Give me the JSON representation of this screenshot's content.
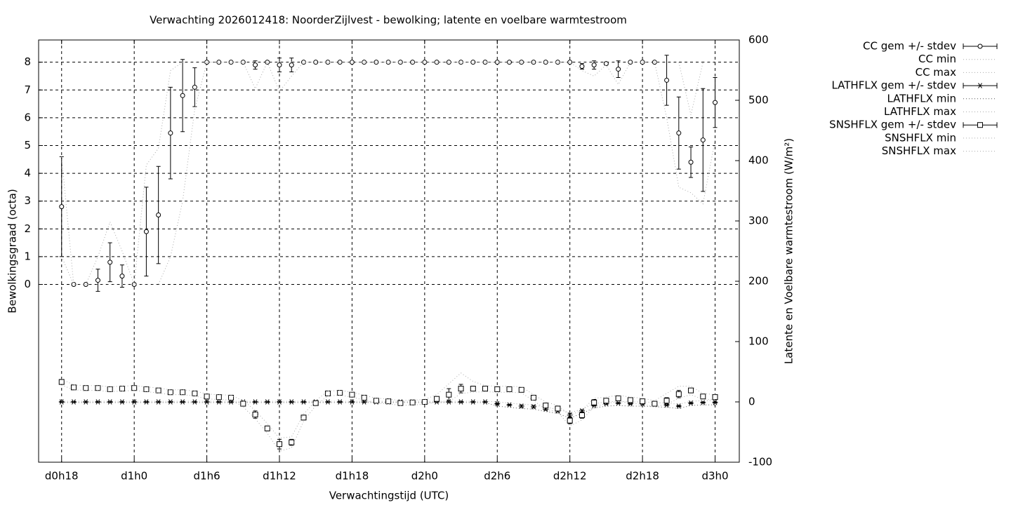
{
  "chart_data": {
    "type": "line",
    "title": "Verwachting 2026012418: NoorderZijlvest - bewolking; latente en voelbare warmtestroom",
    "xlabel": "Verwachtingstijd (UTC)",
    "ylabel": "Bewolkingsgraad (octa)",
    "y2label": "Latente en Voelbare warmtestroom (W/m²)",
    "grid": true,
    "xlim": [
      16.1,
      74
    ],
    "xticks": [
      {
        "value": 18,
        "label": "d0h18"
      },
      {
        "value": 24,
        "label": "d1h0"
      },
      {
        "value": 30,
        "label": "d1h6"
      },
      {
        "value": 36,
        "label": "d1h12"
      },
      {
        "value": 42,
        "label": "d1h18"
      },
      {
        "value": 48,
        "label": "d2h0"
      },
      {
        "value": 54,
        "label": "d2h6"
      },
      {
        "value": 60,
        "label": "d2h12"
      },
      {
        "value": 66,
        "label": "d2h18"
      },
      {
        "value": 72,
        "label": "d3h0"
      }
    ],
    "ylim": [
      -6.4,
      8.8
    ],
    "yticks": [
      0,
      1,
      2,
      3,
      4,
      5,
      6,
      7,
      8
    ],
    "y2lim": [
      -100,
      600
    ],
    "y2ticks": [
      -100,
      0,
      100,
      200,
      300,
      400,
      500,
      600
    ],
    "x": [
      18,
      19,
      20,
      21,
      22,
      23,
      24,
      25,
      26,
      27,
      28,
      29,
      30,
      31,
      32,
      33,
      34,
      35,
      36,
      37,
      38,
      39,
      40,
      41,
      42,
      43,
      44,
      45,
      46,
      47,
      48,
      49,
      50,
      51,
      52,
      53,
      54,
      55,
      56,
      57,
      58,
      59,
      60,
      61,
      62,
      63,
      64,
      65,
      66,
      67,
      68,
      69,
      70,
      71,
      72
    ],
    "series": [
      {
        "name": "CC gem +/- stdev",
        "color": "#000000",
        "marker": "circle",
        "values": [
          2.8,
          0,
          0,
          0.15,
          0.8,
          0.3,
          0,
          1.9,
          2.5,
          5.45,
          6.8,
          7.1,
          8,
          8,
          8,
          8,
          7.9,
          8,
          7.9,
          7.9,
          8,
          8,
          8,
          8,
          8,
          8,
          8,
          8,
          8,
          8,
          8,
          8,
          8,
          8,
          8,
          8,
          8,
          8,
          8,
          8,
          8,
          8,
          8,
          7.85,
          7.9,
          7.95,
          7.75,
          8,
          8,
          8,
          7.35,
          5.45,
          4.4,
          5.2,
          6.55
        ],
        "errors": [
          1.8,
          0,
          0,
          0.4,
          0.7,
          0.4,
          0,
          1.6,
          1.75,
          1.65,
          1.3,
          0.7,
          0,
          0,
          0,
          0,
          0.15,
          0,
          0.25,
          0.25,
          0,
          0,
          0,
          0,
          0,
          0,
          0,
          0,
          0,
          0,
          0,
          0,
          0,
          0,
          0,
          0,
          0,
          0,
          0,
          0,
          0,
          0,
          0,
          0.1,
          0.15,
          0.05,
          0.3,
          0,
          0,
          0,
          0.9,
          1.3,
          0.55,
          1.85,
          0.9
        ]
      },
      {
        "name": "CC min",
        "color": "#aaaaaa",
        "style": "dotted",
        "values": [
          1,
          0,
          0,
          0,
          0,
          0,
          0,
          0,
          0,
          1,
          3,
          6.3,
          8,
          8,
          8,
          8,
          7.05,
          8,
          6.95,
          7.5,
          8,
          8,
          8,
          8,
          8,
          8,
          8,
          8,
          8,
          8,
          8,
          8,
          8,
          8,
          8,
          8,
          8,
          8,
          8,
          8,
          8,
          8,
          8,
          7.7,
          7.5,
          7.9,
          7.2,
          8,
          8,
          8,
          6,
          3.5,
          3.3,
          2.9,
          5.2
        ]
      },
      {
        "name": "CC max",
        "color": "#aaaaaa",
        "style": "dotted",
        "values": [
          4.6,
          0,
          0,
          1,
          2.25,
          1.2,
          0,
          4.3,
          4.9,
          7.7,
          8,
          8,
          8,
          8,
          8,
          8,
          8,
          8,
          8,
          8,
          8,
          8,
          8,
          8,
          8,
          8,
          8,
          8,
          8,
          8,
          8,
          8,
          8,
          8,
          8,
          8,
          8,
          8,
          8,
          8,
          8,
          8,
          8,
          8,
          8,
          8,
          8,
          8,
          8,
          8,
          8,
          8,
          6.1,
          8,
          8
        ]
      },
      {
        "name": "LATHFLX gem +/- stdev",
        "color": "#000000",
        "marker": "star",
        "axis": "y2",
        "values": [
          0,
          0,
          0,
          0,
          0,
          0,
          0,
          0,
          0,
          0,
          0,
          0,
          0,
          0,
          0,
          0,
          0,
          0,
          0,
          0,
          0,
          0,
          0,
          0,
          0,
          0,
          0,
          0,
          0,
          0,
          0,
          0,
          0,
          0,
          0,
          0,
          -3,
          -5,
          -7,
          -8,
          -12,
          -15,
          -22,
          -15,
          -6,
          -3,
          -2,
          -3,
          -3,
          -4,
          -5,
          -7,
          -2,
          -1,
          -1
        ],
        "errors": [
          1,
          1,
          1,
          1,
          1,
          1,
          1,
          1,
          1,
          1,
          1,
          1,
          1,
          1,
          1,
          1,
          1,
          1,
          1,
          1,
          1,
          1,
          1,
          1,
          1,
          1,
          1,
          1,
          1,
          1,
          1,
          1,
          1,
          1,
          1,
          1,
          1,
          1,
          2,
          2,
          2,
          2,
          3,
          2,
          1,
          1,
          1,
          1,
          1,
          1,
          1,
          1,
          1,
          1,
          1
        ]
      },
      {
        "name": "LATHFLX min",
        "color": "#555555",
        "style": "dotted",
        "axis": "y2",
        "values": [
          -1,
          -1,
          -1,
          -1,
          -1,
          -1,
          -1,
          -1,
          -1,
          -1,
          -1,
          -1,
          -1,
          -1,
          -1,
          -1,
          -1,
          -1,
          -1,
          -1,
          -1,
          -1,
          -1,
          -1,
          -1,
          -1,
          -1,
          -1,
          -1,
          -1,
          -1,
          -1,
          -1,
          -1,
          -1,
          -1,
          -7,
          -9,
          -11,
          -12,
          -16,
          -19,
          -27,
          -19,
          -10,
          -7,
          -6,
          -7,
          -7,
          -8,
          -9,
          -11,
          -6,
          -5,
          -5
        ]
      },
      {
        "name": "LATHFLX max",
        "color": "#aaaaaa",
        "style": "dotted",
        "axis": "y2",
        "values": [
          1,
          1,
          1,
          1,
          1,
          1,
          1,
          1,
          1,
          1,
          1,
          1,
          1,
          1,
          1,
          1,
          1,
          1,
          1,
          1,
          1,
          1,
          1,
          1,
          1,
          1,
          1,
          1,
          1,
          1,
          1,
          1,
          1,
          1,
          1,
          1,
          0,
          -2,
          -4,
          -5,
          -9,
          -12,
          -18,
          -12,
          -3,
          0,
          1,
          0,
          0,
          -1,
          -2,
          -4,
          1,
          2,
          2
        ]
      },
      {
        "name": "SNSHFLX gem +/- stdev",
        "color": "#000000",
        "marker": "square",
        "axis": "y2",
        "values": [
          33,
          24,
          23,
          23,
          21,
          22,
          23,
          21,
          19,
          16,
          16,
          14,
          9,
          8,
          7,
          -3,
          -21,
          -44,
          -70,
          -67,
          -26,
          -2,
          14,
          15,
          12,
          7,
          2,
          1,
          -2,
          -1,
          0,
          5,
          12,
          22,
          22,
          22,
          21,
          21,
          20,
          7,
          -6,
          -11,
          -31,
          -22,
          -1,
          2,
          6,
          3,
          1,
          -3,
          2,
          13,
          19,
          9,
          8
        ],
        "errors": [
          4,
          2,
          2,
          2,
          2,
          2,
          2,
          2,
          2,
          2,
          2,
          2,
          3,
          3,
          2,
          3,
          6,
          4,
          8,
          5,
          4,
          2,
          2,
          2,
          2,
          2,
          2,
          2,
          2,
          2,
          2,
          3,
          10,
          7,
          4,
          2,
          2,
          2,
          2,
          2,
          2,
          3,
          5,
          5,
          5,
          2,
          2,
          2,
          2,
          2,
          5,
          6,
          2,
          2,
          2
        ]
      },
      {
        "name": "SNSHFLX min",
        "color": "#aaaaaa",
        "style": "dotted",
        "axis": "y2",
        "values": [
          28,
          20,
          19,
          19,
          17,
          18,
          19,
          17,
          15,
          12,
          12,
          10,
          5,
          4,
          3,
          -8,
          -28,
          -52,
          -82,
          -76,
          -32,
          -6,
          10,
          11,
          8,
          3,
          -2,
          -3,
          -6,
          -5,
          -4,
          0,
          0,
          14,
          16,
          17,
          16,
          16,
          15,
          2,
          -12,
          -17,
          -40,
          -30,
          -8,
          -3,
          1,
          -2,
          -4,
          -8,
          -4,
          6,
          12,
          4,
          4
        ]
      },
      {
        "name": "SNSHFLX max",
        "color": "#aaaaaa",
        "style": "dotted",
        "axis": "y2",
        "values": [
          38,
          28,
          27,
          27,
          25,
          26,
          27,
          25,
          23,
          20,
          20,
          18,
          13,
          12,
          11,
          2,
          -14,
          -36,
          -60,
          -58,
          -20,
          2,
          18,
          19,
          16,
          11,
          6,
          5,
          2,
          3,
          4,
          12,
          30,
          48,
          34,
          27,
          26,
          26,
          25,
          12,
          0,
          -6,
          -22,
          -14,
          6,
          8,
          11,
          8,
          6,
          2,
          14,
          26,
          26,
          14,
          12
        ]
      }
    ]
  }
}
